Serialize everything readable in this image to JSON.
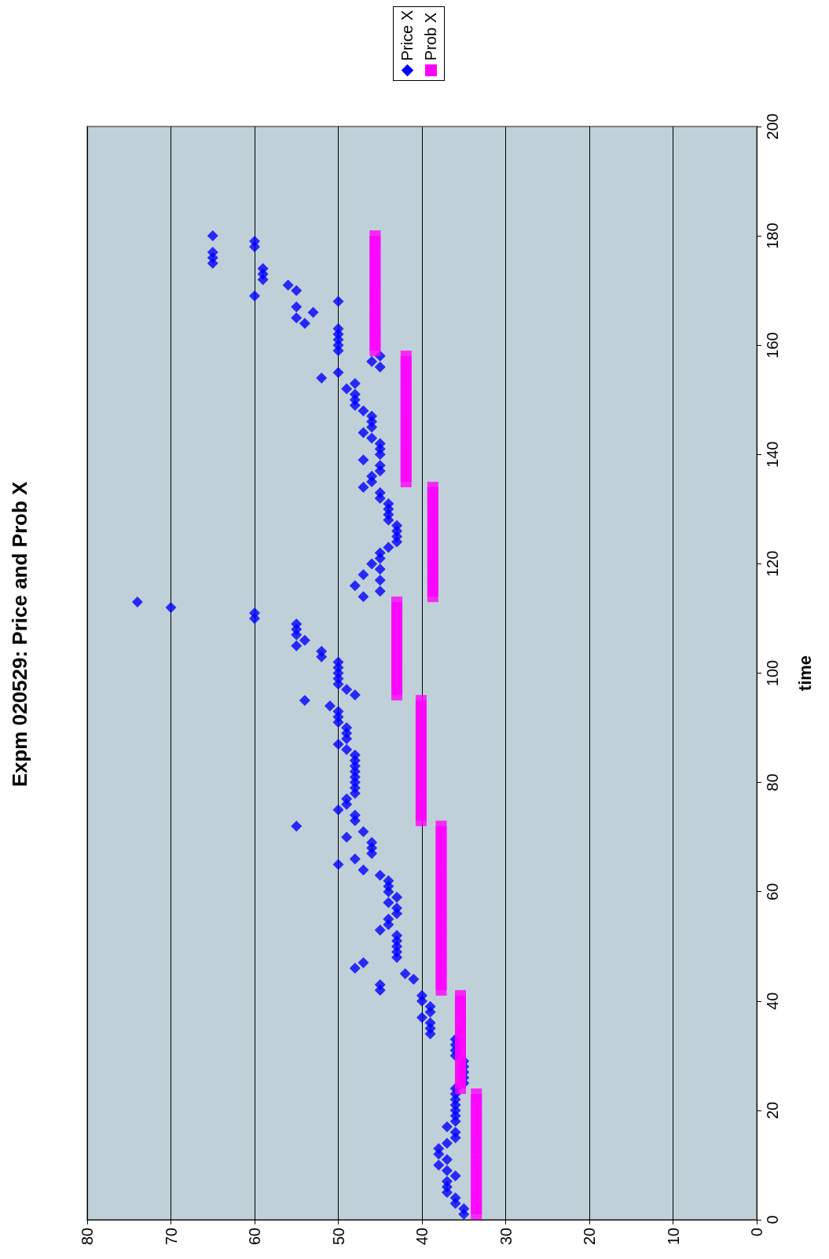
{
  "chart_data": {
    "type": "scatter",
    "title": "Expm 020529: Price and Prob X",
    "ylabel": "time",
    "series": [
      {
        "name": "Price X",
        "color": "#0000ff",
        "marker": "diamond",
        "x": [
          35,
          35,
          36,
          36,
          37,
          37,
          37,
          36,
          37,
          38,
          37,
          38,
          38,
          37,
          36,
          36,
          37,
          36,
          36,
          36,
          36,
          36,
          36,
          36,
          35,
          35,
          35,
          35,
          35,
          36,
          36,
          36,
          36,
          39,
          39,
          39,
          40,
          39,
          39,
          40,
          40,
          45,
          45,
          41,
          42,
          48,
          47,
          43,
          43,
          43,
          43,
          43,
          45,
          44,
          44,
          43,
          43,
          44,
          43,
          44,
          44,
          44,
          45,
          47,
          50,
          48,
          46,
          46,
          46,
          49,
          47,
          55,
          48,
          48,
          50,
          49,
          49,
          48,
          48,
          48,
          48,
          48,
          48,
          48,
          48,
          49,
          50,
          49,
          49,
          49,
          50,
          50,
          50,
          51,
          54,
          48,
          49,
          50,
          50,
          50,
          50,
          50,
          52,
          52,
          55,
          54,
          55,
          55,
          55,
          60,
          60,
          70,
          74,
          47,
          45,
          48,
          45,
          47,
          45,
          46,
          45,
          45,
          44,
          43,
          43,
          43,
          43,
          44,
          44,
          44,
          44,
          45,
          45,
          47,
          46,
          46,
          45,
          45,
          47,
          45,
          45,
          45,
          46,
          47,
          46,
          46,
          46,
          47,
          48,
          48,
          48,
          49,
          48,
          52,
          50,
          45,
          46,
          45,
          50,
          50,
          50,
          50,
          50,
          54,
          55,
          53,
          55,
          50,
          60,
          55,
          56,
          59,
          59,
          59,
          65,
          65,
          65,
          60,
          60,
          65
        ],
        "values": [
          1,
          2,
          3,
          4,
          5,
          6,
          7,
          8,
          9,
          10,
          11,
          12,
          13,
          14,
          15,
          16,
          17,
          18,
          19,
          20,
          21,
          22,
          23,
          24,
          25,
          26,
          27,
          28,
          29,
          30,
          31,
          32,
          33,
          34,
          35,
          36,
          37,
          38,
          39,
          40,
          41,
          42,
          43,
          44,
          45,
          46,
          47,
          48,
          49,
          50,
          51,
          52,
          53,
          54,
          55,
          56,
          57,
          58,
          59,
          60,
          61,
          62,
          63,
          64,
          65,
          66,
          67,
          68,
          69,
          70,
          71,
          72,
          73,
          74,
          75,
          76,
          77,
          78,
          79,
          80,
          81,
          82,
          83,
          84,
          85,
          86,
          87,
          88,
          89,
          90,
          91,
          92,
          93,
          94,
          95,
          96,
          97,
          98,
          99,
          100,
          101,
          102,
          103,
          104,
          105,
          106,
          107,
          108,
          109,
          110,
          111,
          112,
          113,
          114,
          115,
          116,
          117,
          118,
          119,
          120,
          121,
          122,
          123,
          124,
          125,
          126,
          127,
          128,
          129,
          130,
          131,
          132,
          133,
          134,
          135,
          136,
          137,
          138,
          139,
          140,
          141,
          142,
          143,
          144,
          145,
          146,
          147,
          148,
          149,
          150,
          151,
          152,
          153,
          154,
          155,
          156,
          157,
          158,
          159,
          160,
          161,
          162,
          163,
          164,
          165,
          166,
          167,
          168,
          169,
          170,
          171,
          172,
          173,
          174,
          175,
          176,
          177,
          178,
          179,
          180
        ]
      },
      {
        "name": "Prob X",
        "color": "#ff00ff",
        "marker": "square",
        "x": [
          33.5,
          33.5,
          33.5,
          33.5,
          33.5,
          33.5,
          33.5,
          33.5,
          33.5,
          33.5,
          33.5,
          33.5,
          33.5,
          33.5,
          33.5,
          33.5,
          33.5,
          33.5,
          33.5,
          33.5,
          33.5,
          33.5,
          33.5,
          35.4,
          35.4,
          35.4,
          35.4,
          35.4,
          35.4,
          35.4,
          35.4,
          35.4,
          35.4,
          35.4,
          35.4,
          35.4,
          35.4,
          35.4,
          35.4,
          35.4,
          35.4,
          37.7,
          37.7,
          37.7,
          37.7,
          37.7,
          37.7,
          37.7,
          37.7,
          37.7,
          37.7,
          37.7,
          37.7,
          37.7,
          37.7,
          37.7,
          37.7,
          37.7,
          37.7,
          37.7,
          37.7,
          37.7,
          37.7,
          37.7,
          37.7,
          37.7,
          37.7,
          37.7,
          37.7,
          37.7,
          37.7,
          37.7,
          40.1,
          40.1,
          40.1,
          40.1,
          40.1,
          40.1,
          40.1,
          40.1,
          40.1,
          40.1,
          40.1,
          40.1,
          40.1,
          40.1,
          40.1,
          40.1,
          40.1,
          40.1,
          40.1,
          40.1,
          40.1,
          40.1,
          40.1,
          43,
          43,
          43,
          43,
          43,
          43,
          43,
          43,
          43,
          43,
          43,
          43,
          43,
          43,
          43,
          43,
          43,
          43,
          38.7,
          38.7,
          38.7,
          38.7,
          38.7,
          38.7,
          38.7,
          38.7,
          38.7,
          38.7,
          38.7,
          38.7,
          38.7,
          38.7,
          38.7,
          38.7,
          38.7,
          38.7,
          38.7,
          38.7,
          38.7,
          41.9,
          41.9,
          41.9,
          41.9,
          41.9,
          41.9,
          41.9,
          41.9,
          41.9,
          41.9,
          41.9,
          41.9,
          41.9,
          41.9,
          41.9,
          41.9,
          41.9,
          41.9,
          41.9,
          41.9,
          41.9,
          41.9,
          41.9,
          41.9,
          45.6,
          45.6,
          45.6,
          45.6,
          45.6,
          45.6,
          45.6,
          45.6,
          45.6,
          45.6,
          45.6,
          45.6,
          45.6,
          45.6,
          45.6,
          45.6,
          45.6,
          45.6,
          45.6,
          45.6,
          45.6,
          45.6
        ],
        "values": [
          1,
          2,
          3,
          4,
          5,
          6,
          7,
          8,
          9,
          10,
          11,
          12,
          13,
          14,
          15,
          16,
          17,
          18,
          19,
          20,
          21,
          22,
          23,
          24,
          25,
          26,
          27,
          28,
          29,
          30,
          31,
          32,
          33,
          34,
          35,
          36,
          37,
          38,
          39,
          40,
          41,
          42,
          43,
          44,
          45,
          46,
          47,
          48,
          49,
          50,
          51,
          52,
          53,
          54,
          55,
          56,
          57,
          58,
          59,
          60,
          61,
          62,
          63,
          64,
          65,
          66,
          67,
          68,
          69,
          70,
          71,
          72,
          73,
          74,
          75,
          76,
          77,
          78,
          79,
          80,
          81,
          82,
          83,
          84,
          85,
          86,
          87,
          88,
          89,
          90,
          91,
          92,
          93,
          94,
          95,
          96,
          97,
          98,
          99,
          100,
          101,
          102,
          103,
          104,
          105,
          106,
          107,
          108,
          109,
          110,
          111,
          112,
          113,
          114,
          115,
          116,
          117,
          118,
          119,
          120,
          121,
          122,
          123,
          124,
          125,
          126,
          127,
          128,
          129,
          130,
          131,
          132,
          133,
          134,
          135,
          136,
          137,
          138,
          139,
          140,
          141,
          142,
          143,
          144,
          145,
          146,
          147,
          148,
          149,
          150,
          151,
          152,
          153,
          154,
          155,
          156,
          157,
          158,
          159,
          160,
          161,
          162,
          163,
          164,
          165,
          166,
          167,
          168,
          169,
          170,
          171,
          172,
          173,
          174,
          175,
          176,
          177,
          178,
          179,
          180
        ]
      }
    ],
    "xlim": [
      80,
      0
    ],
    "xticks": [
      80,
      70,
      60,
      50,
      40,
      30,
      20,
      10,
      0
    ],
    "ylim": [
      0,
      200
    ],
    "yticks": [
      0,
      20,
      40,
      60,
      80,
      100,
      120,
      140,
      160,
      180,
      200
    ],
    "grid": "x",
    "legend": "top"
  }
}
